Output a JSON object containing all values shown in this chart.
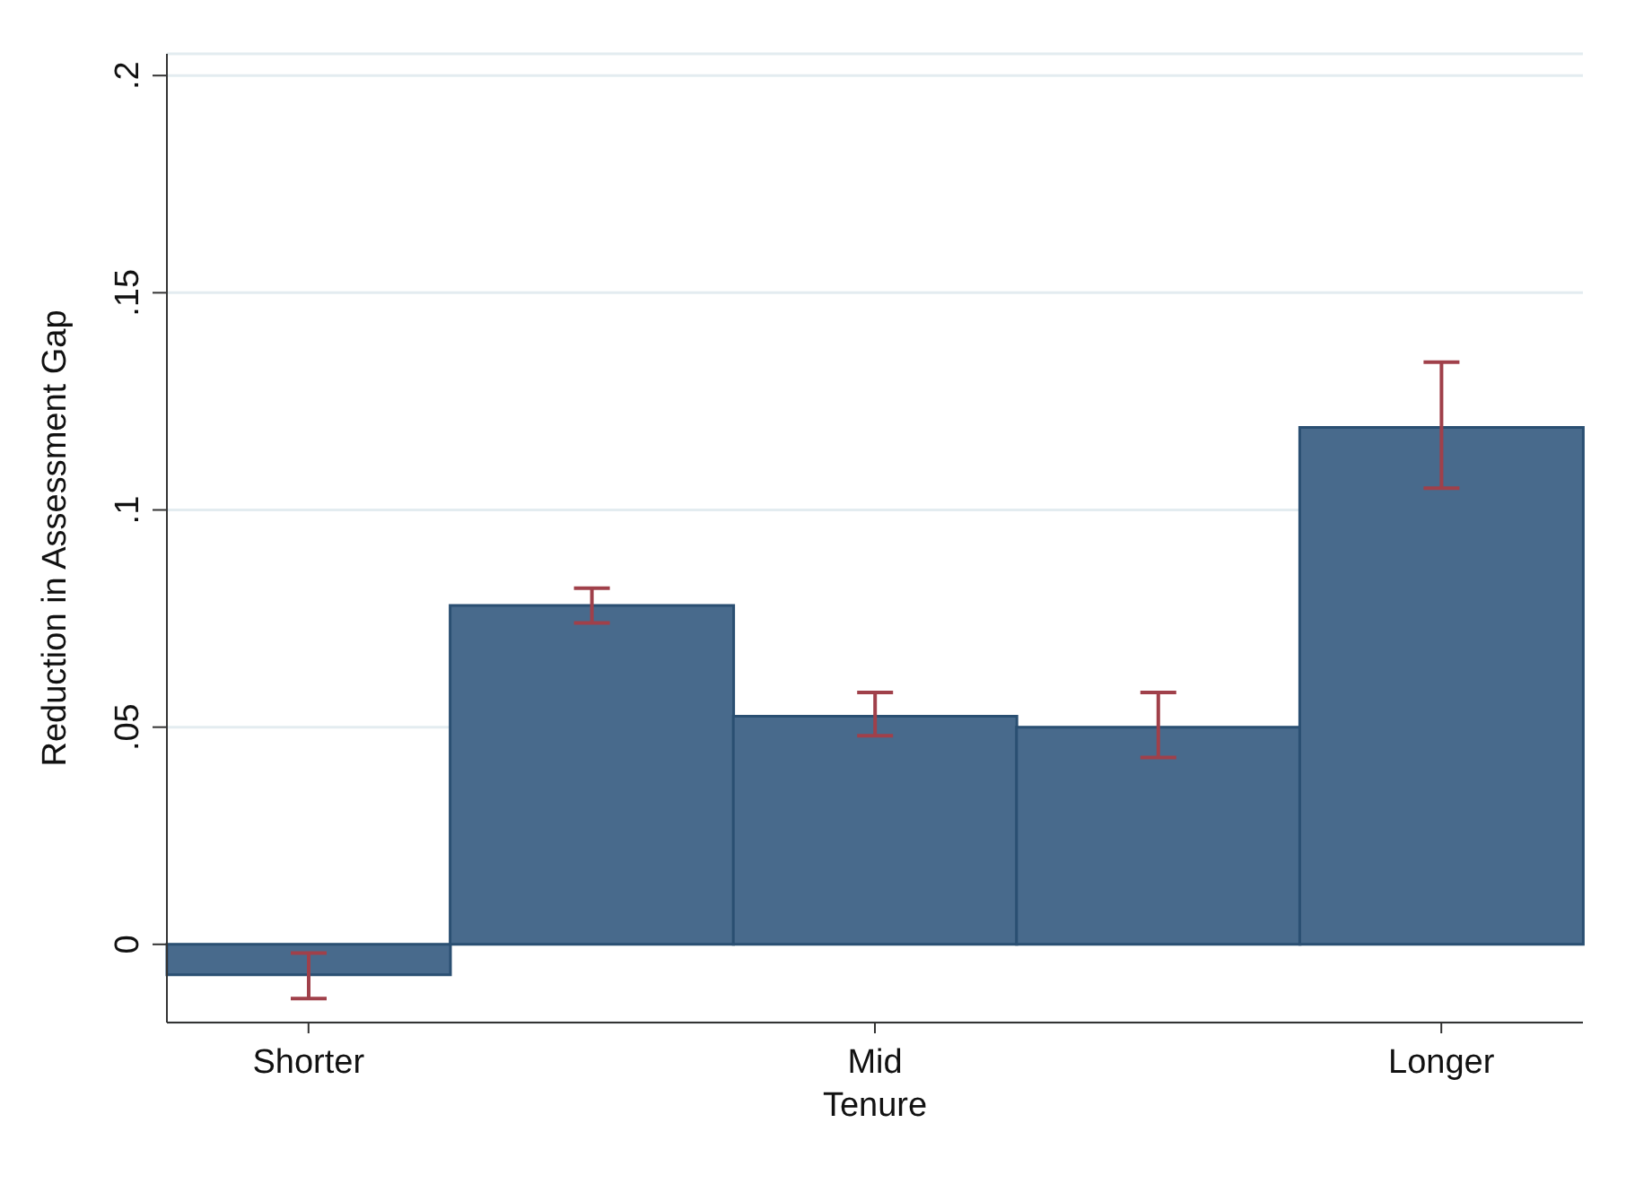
{
  "chart_data": {
    "type": "bar",
    "xlabel": "Tenure",
    "ylabel": "Reduction in Assessment Gap",
    "categories": [
      "Shorter",
      null,
      "Mid",
      null,
      "Longer"
    ],
    "values": [
      -0.007,
      0.078,
      0.0525,
      0.05,
      0.119
    ],
    "errors": [
      [
        -0.0125,
        -0.002
      ],
      [
        0.074,
        0.082
      ],
      [
        0.048,
        0.058
      ],
      [
        0.043,
        0.058
      ],
      [
        0.105,
        0.134
      ]
    ],
    "color": "#486a8c",
    "ylim": [
      -0.018,
      0.205
    ],
    "yticks": [
      0,
      {
        "value": 0.05,
        "label": ".05"
      },
      {
        "value": 0.1,
        "label": ".1"
      },
      {
        "value": 0.15,
        "label": ".15"
      },
      {
        "value": 0.2,
        "label": ".2"
      }
    ],
    "grid": "y"
  }
}
